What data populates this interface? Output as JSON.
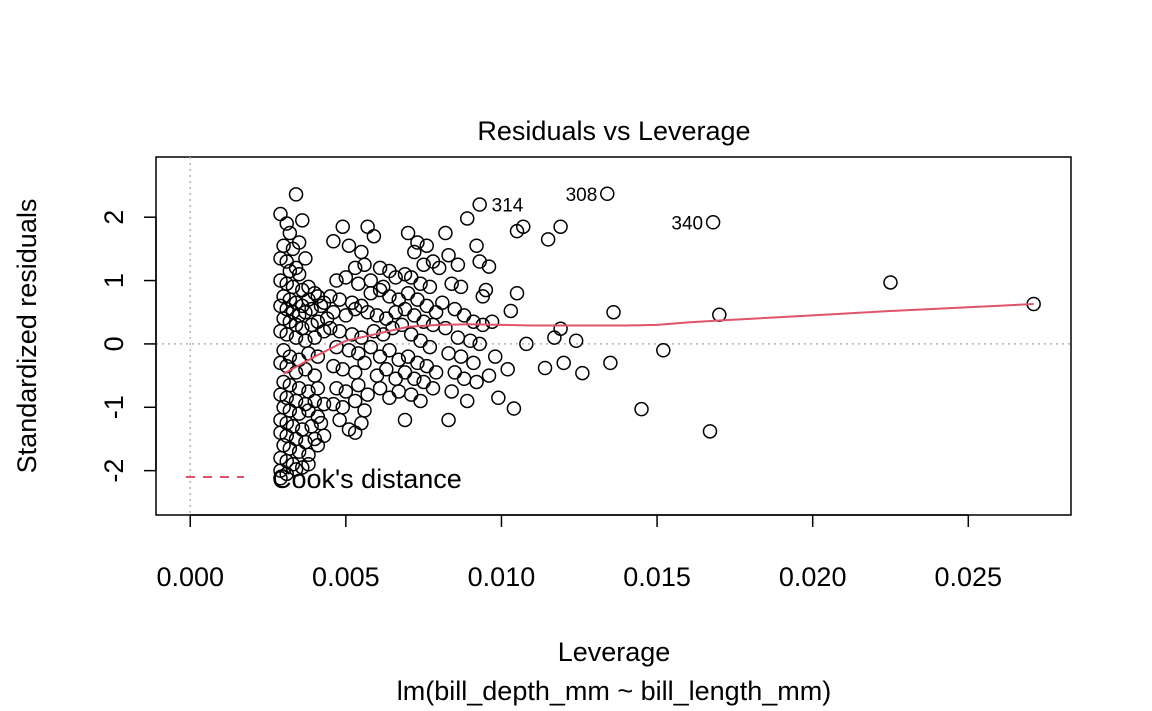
{
  "chart_data": {
    "type": "scatter",
    "title": "Residuals vs Leverage",
    "xlabel": "Leverage",
    "ylabel": "Standardized residuals",
    "sublabel": "lm(bill_depth_mm ~ bill_length_mm)",
    "xlim": [
      -0.0011,
      0.0283
    ],
    "ylim": [
      -2.7,
      2.95
    ],
    "x_ticks": [
      "0.000",
      "0.005",
      "0.010",
      "0.015",
      "0.020",
      "0.025"
    ],
    "x_tick_values": [
      0,
      0.005,
      0.01,
      0.015,
      0.02,
      0.025
    ],
    "y_ticks": [
      "-2",
      "-1",
      "0",
      "1",
      "2"
    ],
    "y_tick_values": [
      -2,
      -1,
      0,
      1,
      2
    ],
    "reference_lines": {
      "x": 0,
      "y": 0,
      "style": "dotted",
      "color": "#b3b3b3"
    },
    "point_style": "open-circle",
    "point_color": "#000000",
    "labeled_points": [
      {
        "label": "314",
        "x": 0.0093,
        "y": 2.2
      },
      {
        "label": "308",
        "x": 0.0134,
        "y": 2.37
      },
      {
        "label": "340",
        "x": 0.0168,
        "y": 1.92
      }
    ],
    "points": [
      [
        0.0029,
        2.05
      ],
      [
        0.0031,
        1.9
      ],
      [
        0.0034,
        2.36
      ],
      [
        0.0036,
        1.95
      ],
      [
        0.0032,
        1.75
      ],
      [
        0.0035,
        1.6
      ],
      [
        0.003,
        1.55
      ],
      [
        0.0033,
        1.5
      ],
      [
        0.0029,
        1.35
      ],
      [
        0.0031,
        1.3
      ],
      [
        0.0034,
        1.2
      ],
      [
        0.0037,
        1.35
      ],
      [
        0.0032,
        1.15
      ],
      [
        0.0035,
        1.1
      ],
      [
        0.0029,
        1.0
      ],
      [
        0.0031,
        0.95
      ],
      [
        0.0033,
        0.9
      ],
      [
        0.0036,
        0.85
      ],
      [
        0.0038,
        0.9
      ],
      [
        0.004,
        0.8
      ],
      [
        0.003,
        0.75
      ],
      [
        0.0032,
        0.7
      ],
      [
        0.0034,
        0.65
      ],
      [
        0.0036,
        0.6
      ],
      [
        0.0038,
        0.7
      ],
      [
        0.0041,
        0.75
      ],
      [
        0.0043,
        0.65
      ],
      [
        0.0029,
        0.6
      ],
      [
        0.0031,
        0.55
      ],
      [
        0.0033,
        0.5
      ],
      [
        0.0035,
        0.45
      ],
      [
        0.0037,
        0.5
      ],
      [
        0.0039,
        0.55
      ],
      [
        0.0042,
        0.6
      ],
      [
        0.003,
        0.4
      ],
      [
        0.0032,
        0.35
      ],
      [
        0.0034,
        0.3
      ],
      [
        0.0036,
        0.25
      ],
      [
        0.0039,
        0.3
      ],
      [
        0.0041,
        0.35
      ],
      [
        0.0044,
        0.4
      ],
      [
        0.0029,
        0.2
      ],
      [
        0.0031,
        0.15
      ],
      [
        0.0034,
        0.1
      ],
      [
        0.0037,
        0.05
      ],
      [
        0.004,
        0.1
      ],
      [
        0.0043,
        0.2
      ],
      [
        0.003,
        -0.1
      ],
      [
        0.0032,
        -0.2
      ],
      [
        0.0035,
        -0.25
      ],
      [
        0.0038,
        -0.15
      ],
      [
        0.0041,
        -0.2
      ],
      [
        0.0029,
        -0.3
      ],
      [
        0.0031,
        -0.35
      ],
      [
        0.0034,
        -0.45
      ],
      [
        0.0037,
        -0.4
      ],
      [
        0.004,
        -0.5
      ],
      [
        0.003,
        -0.6
      ],
      [
        0.0032,
        -0.65
      ],
      [
        0.0035,
        -0.7
      ],
      [
        0.0038,
        -0.75
      ],
      [
        0.0041,
        -0.7
      ],
      [
        0.0029,
        -0.8
      ],
      [
        0.0031,
        -0.85
      ],
      [
        0.0034,
        -0.9
      ],
      [
        0.0037,
        -0.95
      ],
      [
        0.004,
        -0.9
      ],
      [
        0.0043,
        -0.95
      ],
      [
        0.003,
        -1.0
      ],
      [
        0.0032,
        -1.05
      ],
      [
        0.0035,
        -1.1
      ],
      [
        0.0038,
        -1.05
      ],
      [
        0.0041,
        -1.15
      ],
      [
        0.0029,
        -1.2
      ],
      [
        0.0031,
        -1.25
      ],
      [
        0.0033,
        -1.3
      ],
      [
        0.0036,
        -1.35
      ],
      [
        0.0039,
        -1.3
      ],
      [
        0.0042,
        -1.25
      ],
      [
        0.0029,
        -1.4
      ],
      [
        0.0031,
        -1.45
      ],
      [
        0.0034,
        -1.5
      ],
      [
        0.0037,
        -1.55
      ],
      [
        0.004,
        -1.5
      ],
      [
        0.0043,
        -1.45
      ],
      [
        0.003,
        -1.6
      ],
      [
        0.0032,
        -1.65
      ],
      [
        0.0035,
        -1.7
      ],
      [
        0.0038,
        -1.75
      ],
      [
        0.0041,
        -1.6
      ],
      [
        0.0029,
        -1.8
      ],
      [
        0.0031,
        -1.85
      ],
      [
        0.0033,
        -1.9
      ],
      [
        0.0036,
        -1.95
      ],
      [
        0.0029,
        -2.0
      ],
      [
        0.0031,
        -2.05
      ],
      [
        0.0029,
        -2.12
      ],
      [
        0.0034,
        -1.98
      ],
      [
        0.0038,
        -1.9
      ],
      [
        0.0046,
        1.62
      ],
      [
        0.0049,
        1.85
      ],
      [
        0.0051,
        1.55
      ],
      [
        0.0055,
        1.45
      ],
      [
        0.0057,
        1.85
      ],
      [
        0.0059,
        1.7
      ],
      [
        0.0053,
        1.2
      ],
      [
        0.0056,
        1.25
      ],
      [
        0.0061,
        1.2
      ],
      [
        0.0064,
        1.15
      ],
      [
        0.0047,
        1.0
      ],
      [
        0.005,
        1.05
      ],
      [
        0.0054,
        0.95
      ],
      [
        0.0058,
        1.0
      ],
      [
        0.0062,
        0.9
      ],
      [
        0.0066,
        1.05
      ],
      [
        0.0069,
        1.1
      ],
      [
        0.0045,
        0.75
      ],
      [
        0.0048,
        0.7
      ],
      [
        0.0052,
        0.65
      ],
      [
        0.0055,
        0.6
      ],
      [
        0.0058,
        0.8
      ],
      [
        0.0061,
        0.85
      ],
      [
        0.0064,
        0.75
      ],
      [
        0.0067,
        0.7
      ],
      [
        0.0046,
        0.5
      ],
      [
        0.005,
        0.45
      ],
      [
        0.0053,
        0.55
      ],
      [
        0.0057,
        0.5
      ],
      [
        0.006,
        0.45
      ],
      [
        0.0063,
        0.4
      ],
      [
        0.0066,
        0.5
      ],
      [
        0.0069,
        0.55
      ],
      [
        0.0045,
        0.25
      ],
      [
        0.0048,
        0.2
      ],
      [
        0.0052,
        0.15
      ],
      [
        0.0055,
        0.1
      ],
      [
        0.0059,
        0.2
      ],
      [
        0.0062,
        0.15
      ],
      [
        0.0065,
        0.25
      ],
      [
        0.0068,
        0.3
      ],
      [
        0.0047,
        -0.05
      ],
      [
        0.0051,
        -0.1
      ],
      [
        0.0054,
        -0.15
      ],
      [
        0.0058,
        -0.05
      ],
      [
        0.0061,
        -0.2
      ],
      [
        0.0064,
        -0.1
      ],
      [
        0.0067,
        -0.25
      ],
      [
        0.0046,
        -0.35
      ],
      [
        0.0049,
        -0.4
      ],
      [
        0.0053,
        -0.45
      ],
      [
        0.0056,
        -0.3
      ],
      [
        0.006,
        -0.5
      ],
      [
        0.0063,
        -0.4
      ],
      [
        0.0066,
        -0.55
      ],
      [
        0.0069,
        -0.45
      ],
      [
        0.0047,
        -0.7
      ],
      [
        0.005,
        -0.75
      ],
      [
        0.0054,
        -0.65
      ],
      [
        0.0057,
        -0.8
      ],
      [
        0.0061,
        -0.7
      ],
      [
        0.0064,
        -0.85
      ],
      [
        0.0067,
        -0.75
      ],
      [
        0.0046,
        -0.95
      ],
      [
        0.0049,
        -1.0
      ],
      [
        0.0053,
        -0.9
      ],
      [
        0.0056,
        -1.05
      ],
      [
        0.0048,
        -1.2
      ],
      [
        0.0051,
        -1.35
      ],
      [
        0.0055,
        -1.25
      ],
      [
        0.0053,
        -1.4
      ],
      [
        0.007,
        1.75
      ],
      [
        0.0073,
        1.6
      ],
      [
        0.0076,
        1.55
      ],
      [
        0.0072,
        1.45
      ],
      [
        0.0078,
        1.3
      ],
      [
        0.0075,
        1.25
      ],
      [
        0.0071,
        1.05
      ],
      [
        0.0074,
        0.95
      ],
      [
        0.0077,
        0.9
      ],
      [
        0.007,
        0.8
      ],
      [
        0.0073,
        0.7
      ],
      [
        0.0076,
        0.6
      ],
      [
        0.0079,
        0.5
      ],
      [
        0.0072,
        0.45
      ],
      [
        0.0075,
        0.35
      ],
      [
        0.0078,
        0.3
      ],
      [
        0.0071,
        0.15
      ],
      [
        0.0074,
        0.05
      ],
      [
        0.0077,
        -0.05
      ],
      [
        0.007,
        -0.2
      ],
      [
        0.0073,
        -0.3
      ],
      [
        0.0076,
        -0.35
      ],
      [
        0.0079,
        -0.45
      ],
      [
        0.0072,
        -0.55
      ],
      [
        0.0075,
        -0.6
      ],
      [
        0.0078,
        -0.7
      ],
      [
        0.0071,
        -0.8
      ],
      [
        0.0074,
        -0.9
      ],
      [
        0.0069,
        -1.2
      ],
      [
        0.008,
        1.2
      ],
      [
        0.0083,
        1.4
      ],
      [
        0.0086,
        1.25
      ],
      [
        0.0082,
        1.75
      ],
      [
        0.0089,
        1.98
      ],
      [
        0.0092,
        1.55
      ],
      [
        0.0084,
        0.95
      ],
      [
        0.0087,
        0.9
      ],
      [
        0.0081,
        0.65
      ],
      [
        0.0085,
        0.55
      ],
      [
        0.0088,
        0.45
      ],
      [
        0.0091,
        0.35
      ],
      [
        0.0094,
        0.3
      ],
      [
        0.0082,
        0.25
      ],
      [
        0.0086,
        0.1
      ],
      [
        0.009,
        0.05
      ],
      [
        0.0093,
        0.0
      ],
      [
        0.0083,
        -0.15
      ],
      [
        0.0087,
        -0.2
      ],
      [
        0.0091,
        -0.3
      ],
      [
        0.0085,
        -0.45
      ],
      [
        0.0088,
        -0.55
      ],
      [
        0.0092,
        -0.6
      ],
      [
        0.0084,
        -0.75
      ],
      [
        0.0089,
        -0.9
      ],
      [
        0.0083,
        -1.2
      ],
      [
        0.0093,
        1.3
      ],
      [
        0.0096,
        1.22
      ],
      [
        0.0097,
        0.35
      ],
      [
        0.0094,
        0.75
      ],
      [
        0.0095,
        0.85
      ],
      [
        0.0098,
        -0.2
      ],
      [
        0.0099,
        -0.85
      ],
      [
        0.0096,
        -0.5
      ],
      [
        0.0103,
        0.52
      ],
      [
        0.0105,
        0.8
      ],
      [
        0.0107,
        1.85
      ],
      [
        0.0105,
        1.78
      ],
      [
        0.0102,
        -0.4
      ],
      [
        0.0104,
        -1.02
      ],
      [
        0.0108,
        0.0
      ],
      [
        0.0115,
        1.65
      ],
      [
        0.0119,
        1.85
      ],
      [
        0.0114,
        -0.38
      ],
      [
        0.0117,
        0.1
      ],
      [
        0.0119,
        0.24
      ],
      [
        0.012,
        -0.3
      ],
      [
        0.0124,
        0.05
      ],
      [
        0.0126,
        -0.46
      ],
      [
        0.0093,
        2.2
      ],
      [
        0.0134,
        2.37
      ],
      [
        0.0136,
        0.5
      ],
      [
        0.0135,
        -0.3
      ],
      [
        0.0145,
        -1.03
      ],
      [
        0.0152,
        -0.1
      ],
      [
        0.0168,
        1.92
      ],
      [
        0.0167,
        -1.38
      ],
      [
        0.017,
        0.46
      ],
      [
        0.0225,
        0.97
      ],
      [
        0.0271,
        0.63
      ]
    ],
    "loess_line": [
      [
        0.003,
        -0.47
      ],
      [
        0.004,
        -0.2
      ],
      [
        0.005,
        0.05
      ],
      [
        0.006,
        0.16
      ],
      [
        0.007,
        0.27
      ],
      [
        0.008,
        0.3
      ],
      [
        0.009,
        0.31
      ],
      [
        0.01,
        0.3
      ],
      [
        0.011,
        0.29
      ],
      [
        0.012,
        0.29
      ],
      [
        0.013,
        0.29
      ],
      [
        0.014,
        0.29
      ],
      [
        0.015,
        0.3
      ],
      [
        0.016,
        0.34
      ],
      [
        0.017,
        0.37
      ],
      [
        0.02,
        0.45
      ],
      [
        0.0225,
        0.52
      ],
      [
        0.025,
        0.58
      ],
      [
        0.0271,
        0.63
      ]
    ],
    "loess_color": "#df536b",
    "legend": {
      "label": "Cook's distance",
      "line_style": "dashed",
      "color": "#df536b",
      "position": "bottom-left"
    }
  }
}
